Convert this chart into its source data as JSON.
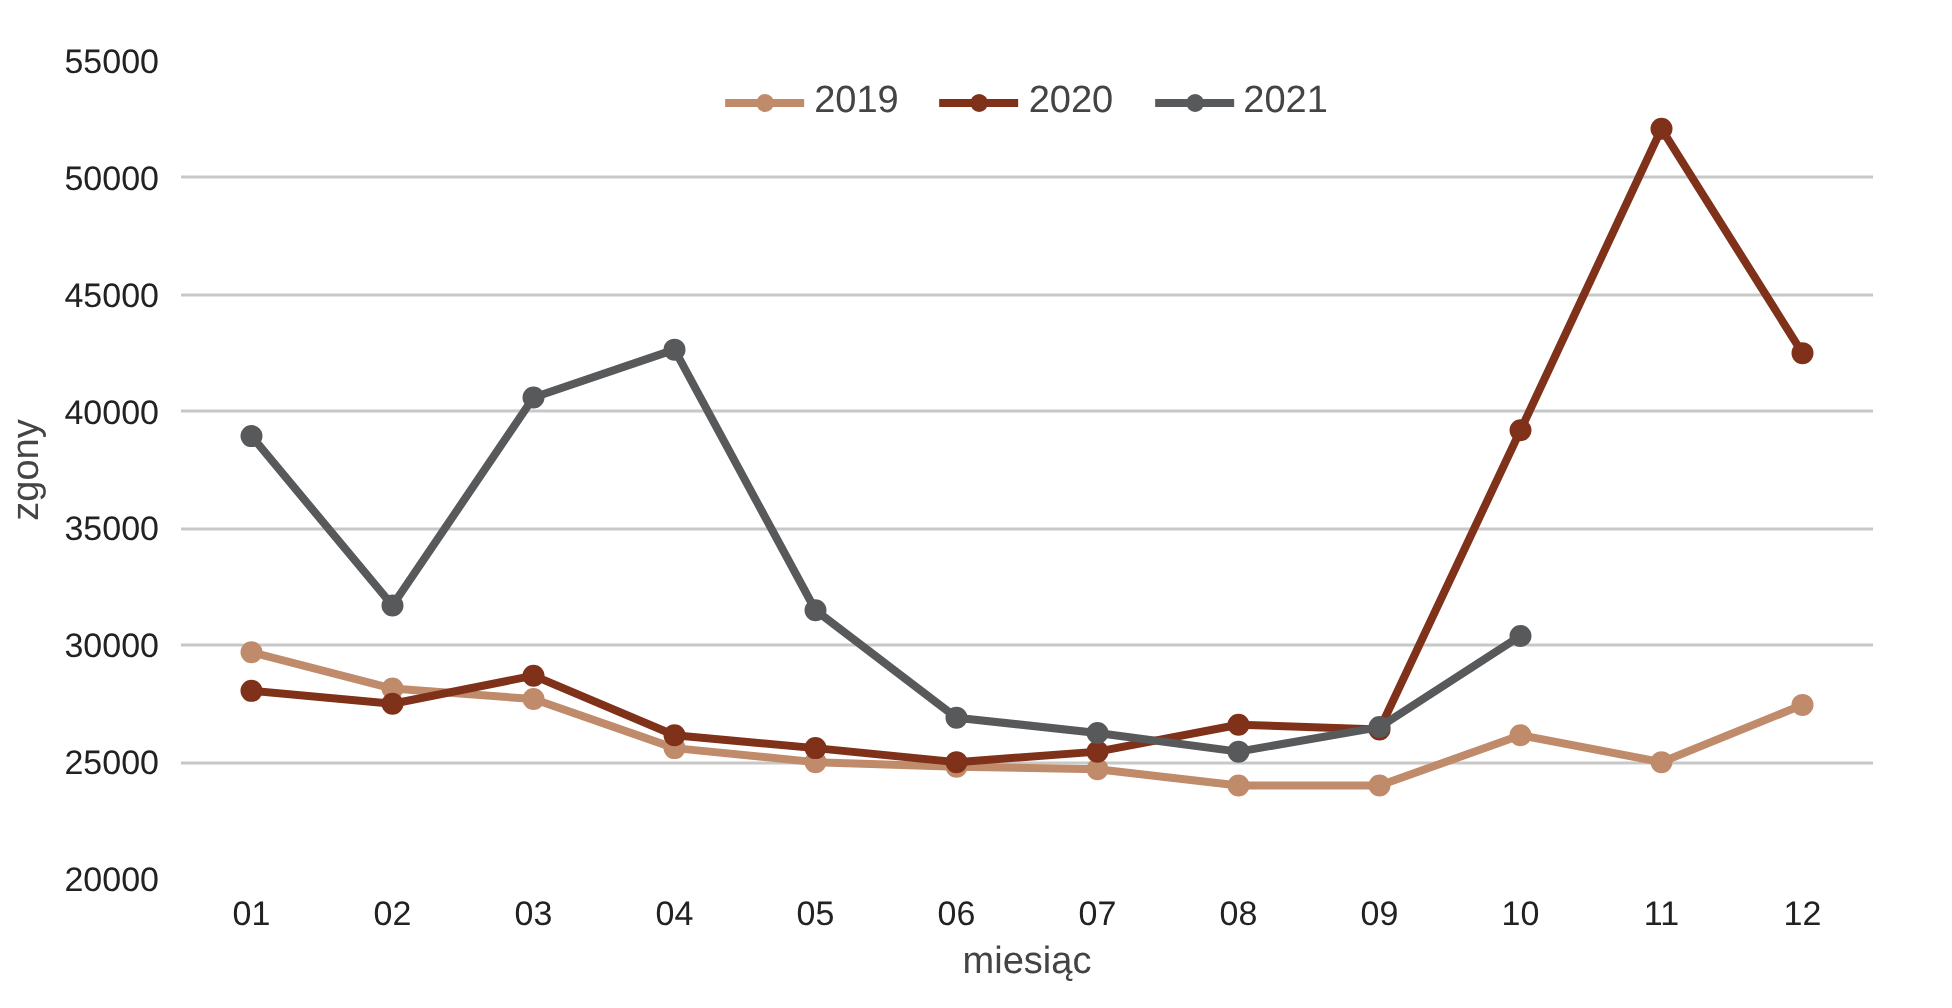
{
  "chart_data": {
    "type": "line",
    "xlabel": "miesiąc",
    "ylabel": "zgony",
    "categories": [
      "01",
      "02",
      "03",
      "04",
      "05",
      "06",
      "07",
      "08",
      "09",
      "10",
      "11",
      "12"
    ],
    "series": [
      {
        "name": "2019",
        "color": "#c08b6a",
        "values": [
          29700,
          28150,
          27700,
          25600,
          25000,
          24800,
          24700,
          24000,
          24000,
          26150,
          25000,
          27450
        ]
      },
      {
        "name": "2020",
        "color": "#7f3119",
        "values": [
          28050,
          27500,
          28700,
          26150,
          25600,
          25000,
          25450,
          26600,
          26400,
          39200,
          52100,
          42500
        ]
      },
      {
        "name": "2021",
        "color": "#58595b",
        "values": [
          38950,
          31700,
          40600,
          42650,
          31500,
          26900,
          26250,
          25450,
          26500,
          30400,
          null,
          null
        ]
      }
    ],
    "ylim": [
      20000,
      55000
    ],
    "yticks": [
      20000,
      25000,
      30000,
      35000,
      40000,
      45000,
      50000,
      55000
    ],
    "grid": "y",
    "legend": "top",
    "marker": "circle",
    "line_style": "solid"
  }
}
